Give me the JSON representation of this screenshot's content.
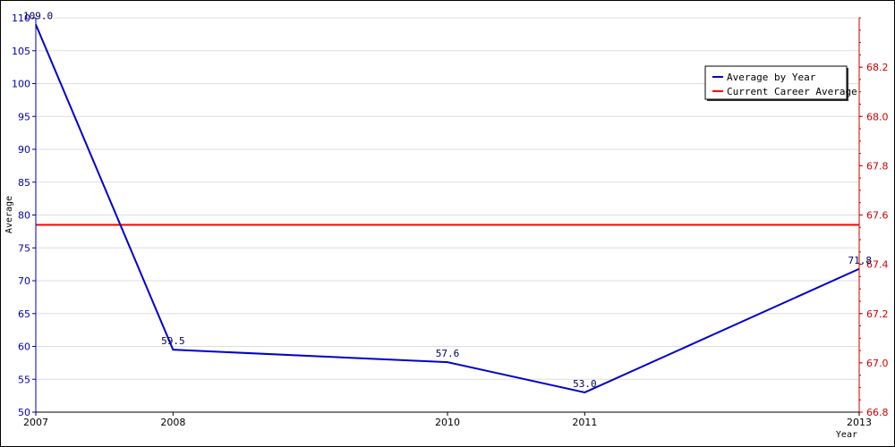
{
  "chart_data": {
    "type": "line",
    "title": "",
    "xlabel": "Year",
    "ylabel": "Average",
    "categories": [
      "2007",
      "2008",
      "2010",
      "2011",
      "2013"
    ],
    "series": [
      {
        "name": "Average by Year",
        "values": [
          109.0,
          59.5,
          57.6,
          53.0,
          71.8
        ],
        "labels": [
          "109.0",
          "59.5",
          "57.6",
          "53.0",
          "71.8"
        ],
        "color": "#0000cc",
        "axis": "left"
      },
      {
        "name": "Current Career Average",
        "values": [
          67.56,
          67.56,
          67.56,
          67.56,
          67.56
        ],
        "color": "#ff0000",
        "axis": "right"
      }
    ],
    "ylim": [
      50,
      110
    ],
    "yticks": [
      "50",
      "55",
      "60",
      "65",
      "70",
      "75",
      "80",
      "85",
      "90",
      "95",
      "100",
      "105",
      "110"
    ],
    "y2lim": [
      66.8,
      68.4
    ],
    "y2ticks": [
      "66.8",
      "67.0",
      "67.2",
      "67.4",
      "67.6",
      "67.8",
      "68.0",
      "68.2"
    ],
    "grid": true,
    "legend_position": "top-right",
    "colors": {
      "left_axis": "#0000aa",
      "right_axis": "#cc0000",
      "grid": "#dddddd"
    }
  }
}
